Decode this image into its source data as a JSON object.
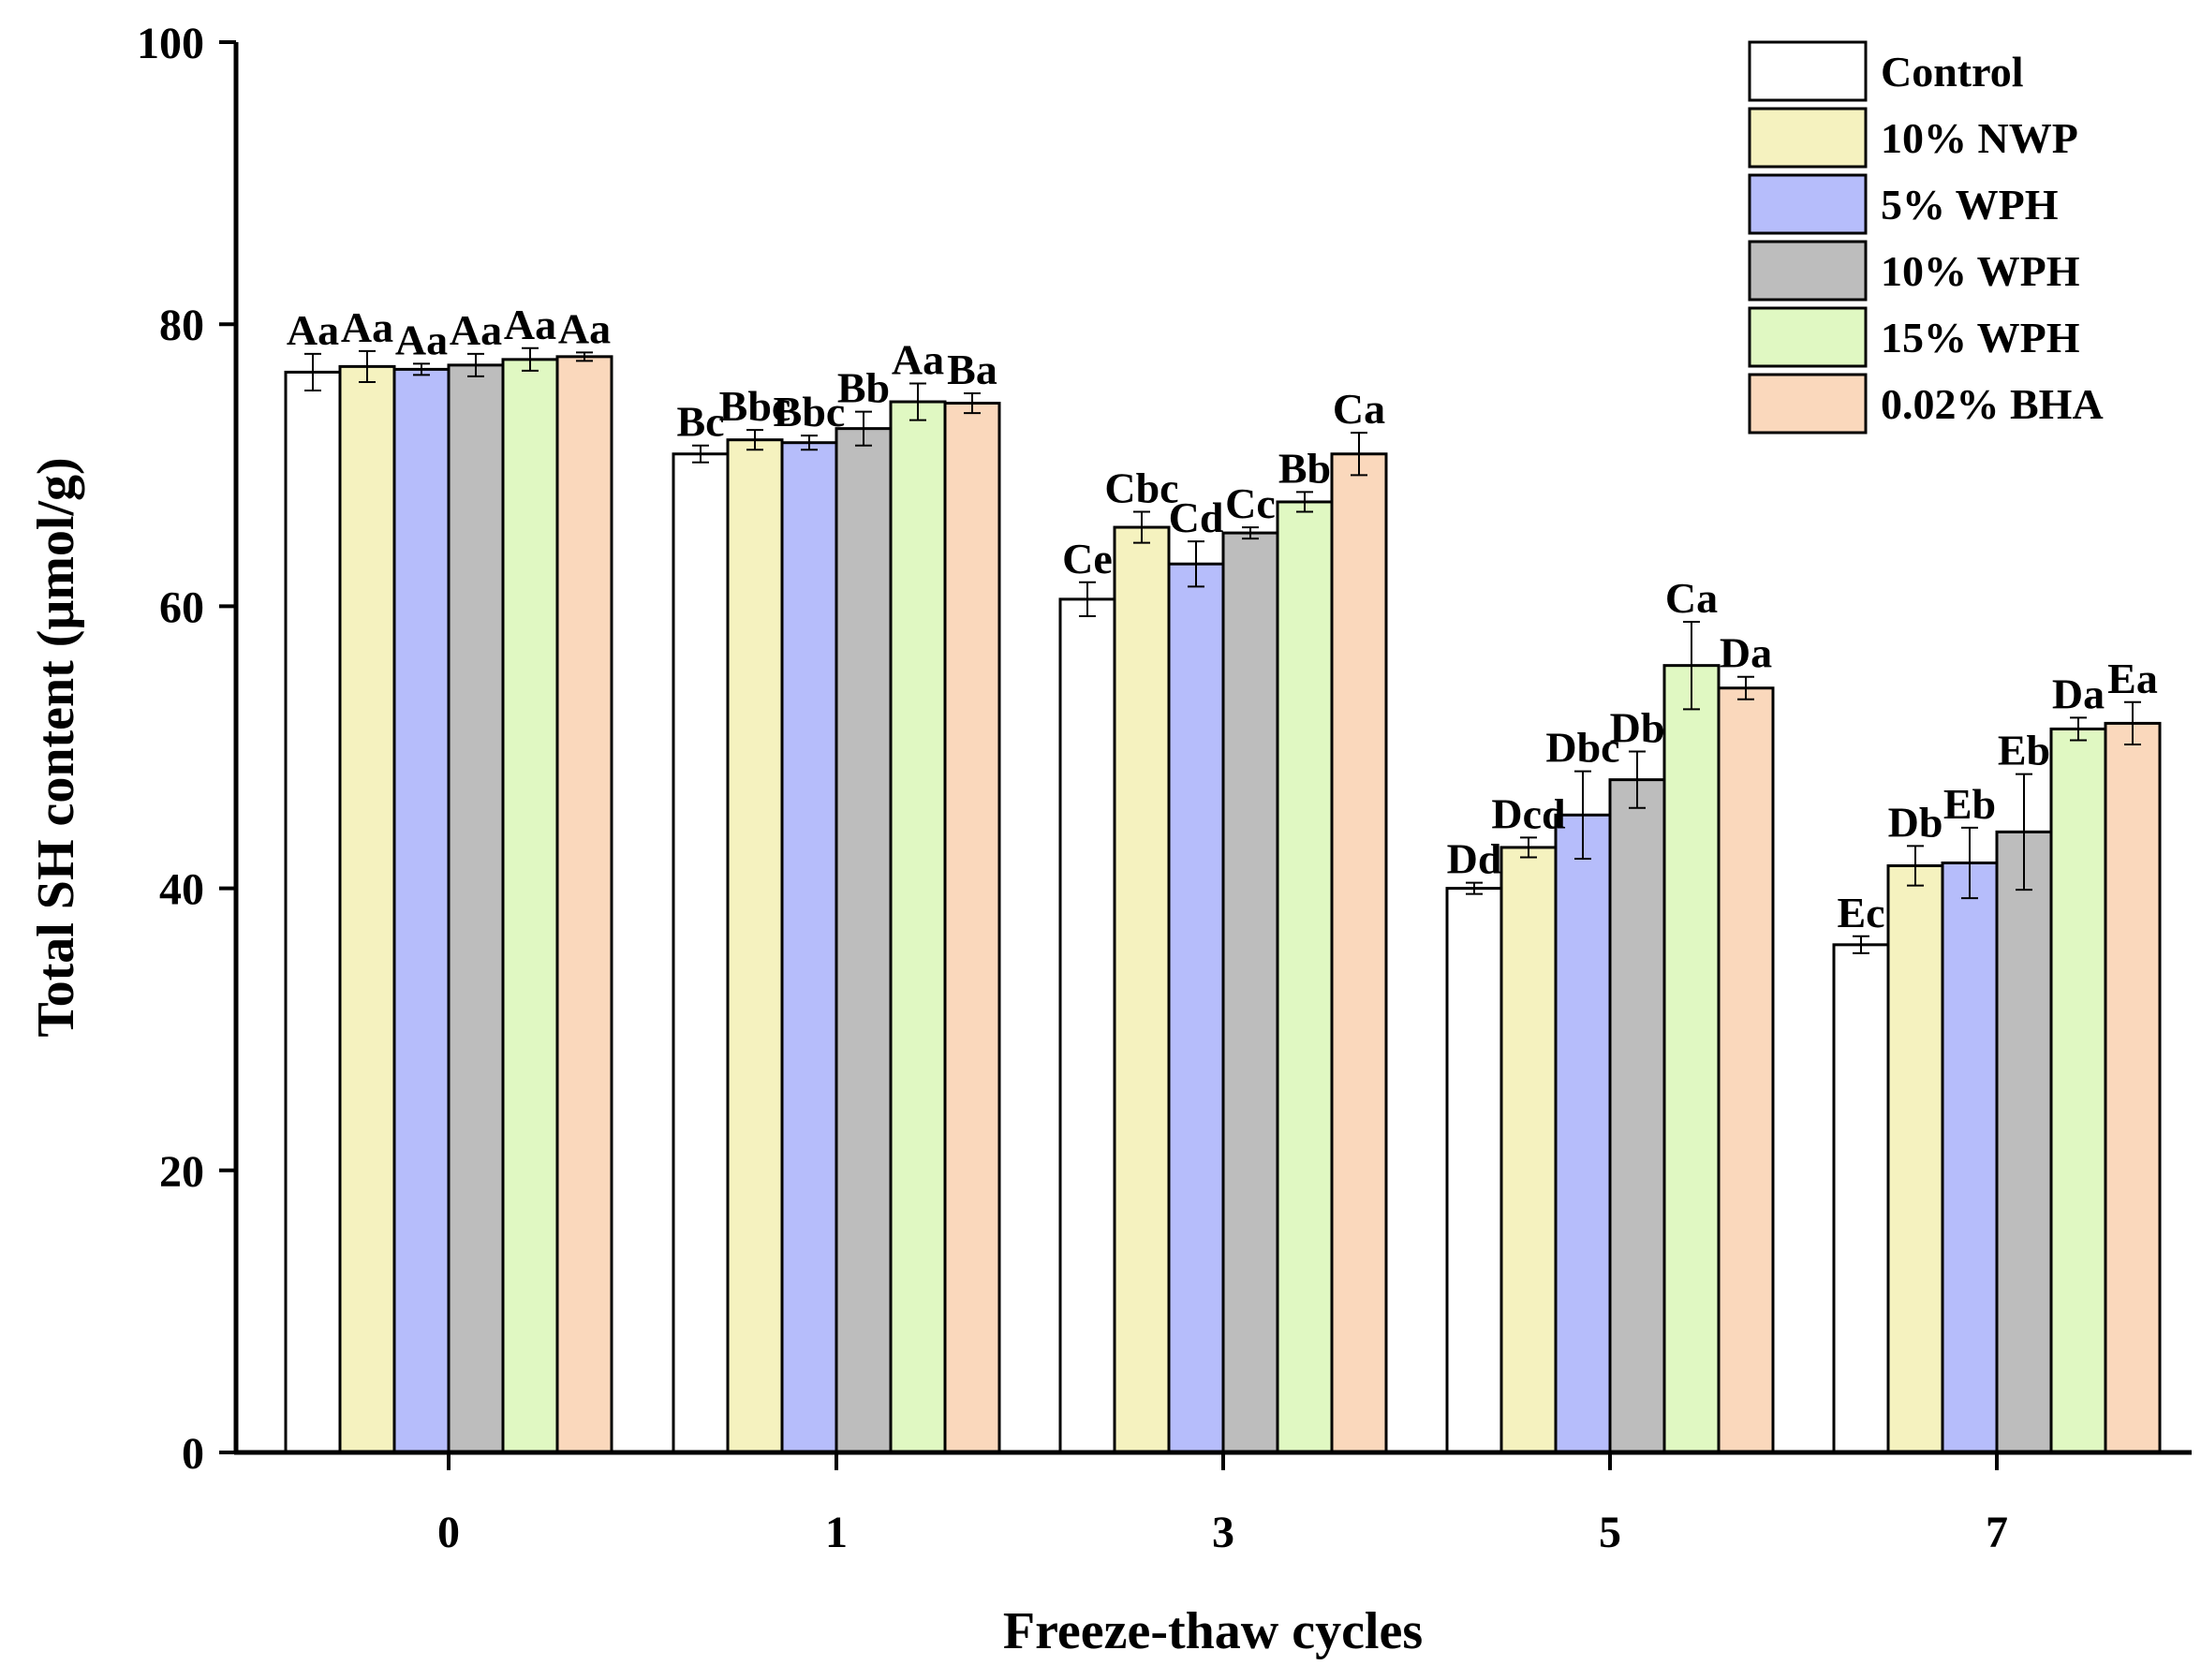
{
  "chart_data": {
    "type": "bar",
    "title": "",
    "xlabel": "Freeze-thaw cycles",
    "ylabel": "Total SH content (μmol/g)",
    "ylim": [
      0,
      100
    ],
    "yticks": [
      "0",
      "20",
      "40",
      "60",
      "80",
      "100"
    ],
    "categories": [
      "0",
      "1",
      "3",
      "5",
      "7"
    ],
    "legend_position": "top-right",
    "series": [
      {
        "name": "Control",
        "color": "#ffffff",
        "values": [
          76.6,
          70.8,
          60.5,
          40.0,
          36.0
        ],
        "errors": [
          1.3,
          0.6,
          1.2,
          0.4,
          0.6
        ],
        "labels": [
          "Aa",
          "Bc",
          "Ce",
          "Dd",
          "Ec"
        ]
      },
      {
        "name": "10% NWP",
        "color": "#f5f2bf",
        "values": [
          77.0,
          71.8,
          65.6,
          42.9,
          41.6
        ],
        "errors": [
          1.1,
          0.7,
          1.1,
          0.7,
          1.4
        ],
        "labels": [
          "Aa",
          "Bbc",
          "Cbc",
          "Dcd",
          "Db"
        ]
      },
      {
        "name": "5% WPH",
        "color": "#b6bdfb",
        "values": [
          76.8,
          71.6,
          63.0,
          45.2,
          41.8
        ],
        "errors": [
          0.4,
          0.5,
          1.6,
          3.1,
          2.5
        ],
        "labels": [
          "Aa",
          "Bbc",
          "Cd",
          "Dbc",
          "Eb"
        ]
      },
      {
        "name": "10% WPH",
        "color": "#bdbdbd",
        "values": [
          77.1,
          72.6,
          65.2,
          47.7,
          44.0
        ],
        "errors": [
          0.8,
          1.2,
          0.4,
          2.0,
          4.1
        ],
        "labels": [
          "Aa",
          "Bb",
          "Cc",
          "Db",
          "Eb"
        ]
      },
      {
        "name": "15% WPH",
        "color": "#e0f8c2",
        "values": [
          77.5,
          74.5,
          67.4,
          55.8,
          51.3
        ],
        "errors": [
          0.8,
          1.3,
          0.7,
          3.1,
          0.8
        ],
        "labels": [
          "Aa",
          "Aa",
          "Bb",
          "Ca",
          "Da"
        ]
      },
      {
        "name": "0.02% BHA",
        "color": "#fad8bc",
        "values": [
          77.7,
          74.4,
          70.8,
          54.2,
          51.7
        ],
        "errors": [
          0.3,
          0.7,
          1.5,
          0.8,
          1.5
        ],
        "labels": [
          "Aa",
          "Ba",
          "Ca",
          "Da",
          "Ea"
        ]
      }
    ]
  }
}
